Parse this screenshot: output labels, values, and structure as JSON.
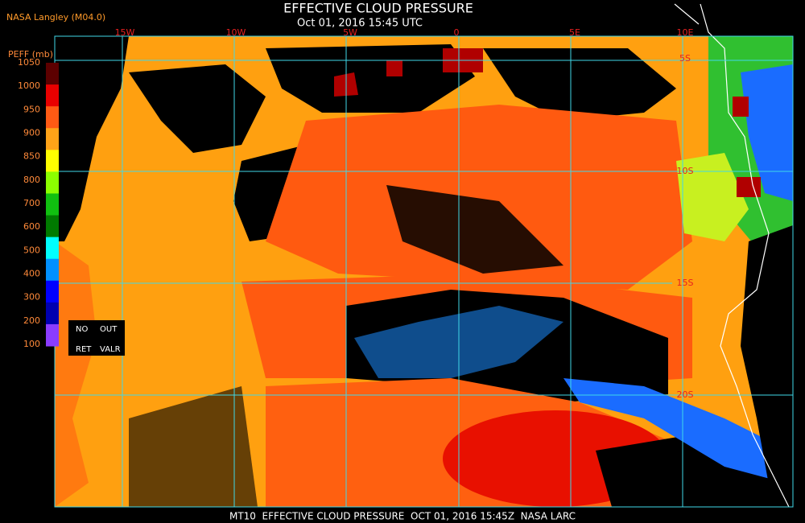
{
  "header": {
    "source": "NASA Langley (M04.0)",
    "title": "EFFECTIVE CLOUD PRESSURE",
    "subtitle": "Oct 01, 2016 15:45 UTC"
  },
  "map": {
    "longitude_labels": [
      "15W",
      "10W",
      "5W",
      "0",
      "5E",
      "10E"
    ],
    "latitude_labels": [
      "5S",
      "10S",
      "15S",
      "20S"
    ]
  },
  "legend": {
    "title": "PEFF (mb)",
    "labels": [
      1050,
      1000,
      950,
      900,
      850,
      800,
      700,
      600,
      500,
      400,
      300,
      200,
      100
    ],
    "colors": [
      "#5c0000",
      "#e80000",
      "#ff5a14",
      "#ffa318",
      "#ffff00",
      "#8cff00",
      "#10c010",
      "#007a00",
      "#00ffff",
      "#0090ff",
      "#0000ff",
      "#0000b0",
      "#8a3cff"
    ],
    "flags": [
      "NO",
      "OUT",
      "RET",
      "VALR"
    ]
  },
  "footer": "MT10  EFFECTIVE CLOUD PRESSURE  OCT 01, 2016 15:45Z  NASA LARC"
}
